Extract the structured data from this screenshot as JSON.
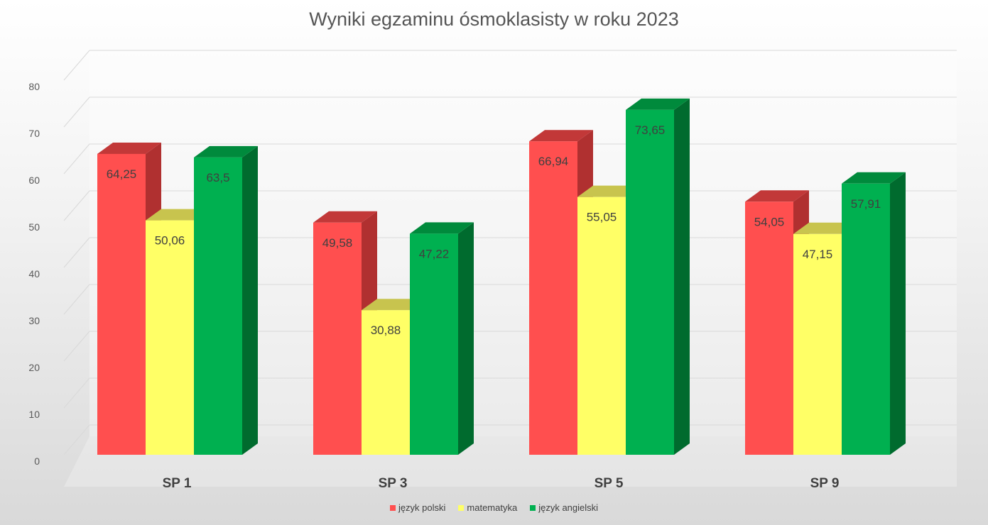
{
  "chart_data": {
    "type": "bar",
    "title": "Wyniki egzaminu ósmoklasisty w roku 2023",
    "categories": [
      "SP 1",
      "SP 3",
      "SP 5",
      "SP 9"
    ],
    "series": [
      {
        "name": "język polski",
        "values": [
          64.25,
          49.58,
          66.94,
          54.05
        ],
        "labels": [
          "64,25",
          "49,58",
          "66,94",
          "54,05"
        ],
        "color": "#ff4f4f",
        "side": "#b03030",
        "top": "#c23838"
      },
      {
        "name": "matematyka",
        "values": [
          50.06,
          30.88,
          55.05,
          47.15
        ],
        "labels": [
          "50,06",
          "30,88",
          "55,05",
          "47,15"
        ],
        "color": "#ffff66",
        "side": "#bfbf4a",
        "top": "#c8c44e"
      },
      {
        "name": "język angielski",
        "values": [
          63.5,
          47.22,
          73.65,
          57.91
        ],
        "labels": [
          "63,5",
          "47,22",
          "73,65",
          "57,91"
        ],
        "color": "#00b050",
        "side": "#006b2e",
        "top": "#008a3c"
      }
    ],
    "yticks": [
      "0",
      "10",
      "20",
      "30",
      "40",
      "50",
      "60",
      "70",
      "80"
    ],
    "ylim": [
      0,
      80
    ],
    "grid": true,
    "legend": "bottom",
    "three_d": true
  }
}
